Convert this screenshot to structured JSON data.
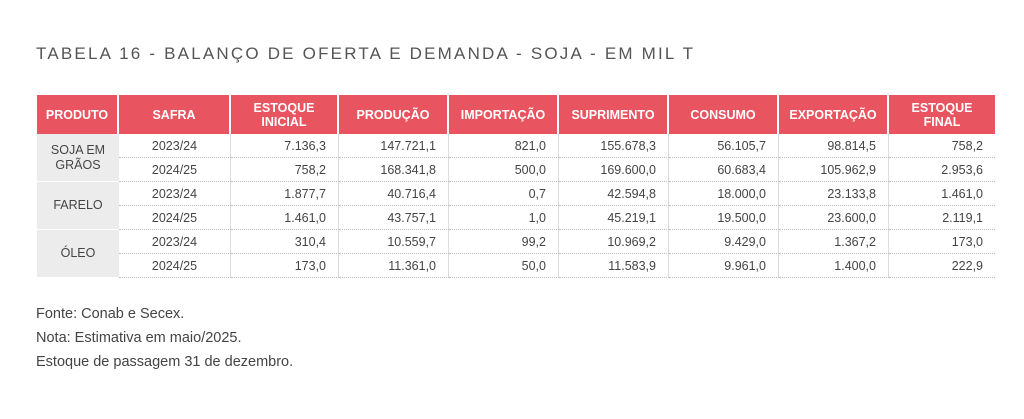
{
  "title": "TABELA 16 - BALANÇO DE OFERTA E DEMANDA - SOJA - EM MIL T",
  "header_color": "#e8545f",
  "columns": [
    "PRODUTO",
    "SAFRA",
    "ESTOQUE INICIAL",
    "PRODUÇÃO",
    "IMPORTAÇÃO",
    "SUPRIMENTO",
    "CONSUMO",
    "EXPORTAÇÃO",
    "ESTOQUE FINAL"
  ],
  "groups": [
    {
      "produto": "SOJA EM GRÃOS",
      "rows": [
        [
          "2023/24",
          "7.136,3",
          "147.721,1",
          "821,0",
          "155.678,3",
          "56.105,7",
          "98.814,5",
          "758,2"
        ],
        [
          "2024/25",
          "758,2",
          "168.341,8",
          "500,0",
          "169.600,0",
          "60.683,4",
          "105.962,9",
          "2.953,6"
        ]
      ]
    },
    {
      "produto": "FARELO",
      "rows": [
        [
          "2023/24",
          "1.877,7",
          "40.716,4",
          "0,7",
          "42.594,8",
          "18.000,0",
          "23.133,8",
          "1.461,0"
        ],
        [
          "2024/25",
          "1.461,0",
          "43.757,1",
          "1,0",
          "45.219,1",
          "19.500,0",
          "23.600,0",
          "2.119,1"
        ]
      ]
    },
    {
      "produto": "ÓLEO",
      "rows": [
        [
          "2023/24",
          "310,4",
          "10.559,7",
          "99,2",
          "10.969,2",
          "9.429,0",
          "1.367,2",
          "173,0"
        ],
        [
          "2024/25",
          "173,0",
          "11.361,0",
          "50,0",
          "11.583,9",
          "9.961,0",
          "1.400,0",
          "222,9"
        ]
      ]
    }
  ],
  "notes": {
    "source": "Fonte: Conab e Secex.",
    "note": "Nota: Estimativa em maio/2025.",
    "stock": "Estoque de passagem 31 de dezembro."
  }
}
